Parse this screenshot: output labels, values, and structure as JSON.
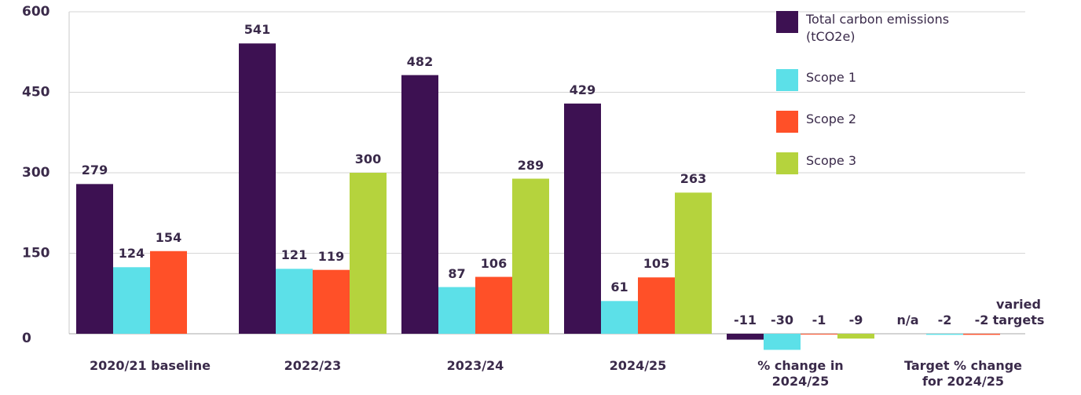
{
  "chart_data": {
    "type": "bar",
    "categories": [
      "2020/21 baseline",
      "2022/23",
      "2023/24",
      "2024/25",
      "% change in 2024/25",
      "Target % change for 2024/25"
    ],
    "series": [
      {
        "name": "Total carbon emissions (tCO2e)",
        "color": "#3d1152",
        "values": [
          279,
          541,
          482,
          429,
          -11,
          null
        ],
        "value_labels": [
          null,
          null,
          null,
          null,
          null,
          "n/a"
        ]
      },
      {
        "name": "Scope 1",
        "color": "#5ce0e8",
        "values": [
          124,
          121,
          87,
          61,
          -30,
          -2
        ]
      },
      {
        "name": "Scope 2",
        "color": "#ff5028",
        "values": [
          154,
          119,
          106,
          105,
          -1,
          -2
        ]
      },
      {
        "name": "Scope 3",
        "color": "#b5d33d",
        "values": [
          null,
          300,
          289,
          263,
          -9,
          null
        ],
        "value_labels": [
          null,
          null,
          null,
          null,
          null,
          "varied targets"
        ]
      }
    ],
    "ylim": [
      -40,
      600
    ],
    "yticks": [
      0,
      150,
      300,
      450,
      600
    ],
    "grid": true,
    "legend": "upper right"
  }
}
